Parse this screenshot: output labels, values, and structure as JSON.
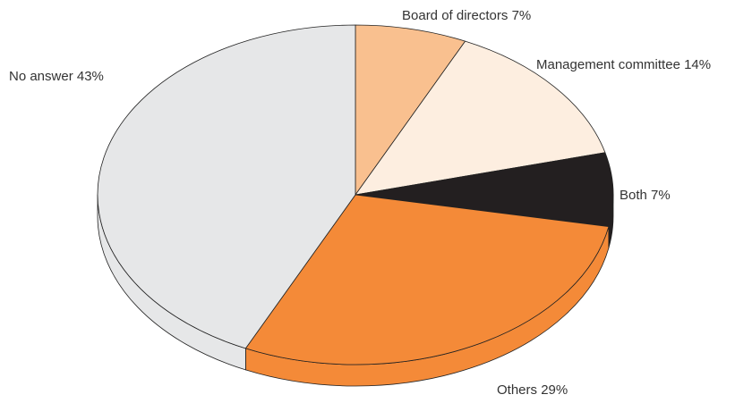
{
  "chart_data": {
    "type": "pie",
    "categories": [
      "Board of directors",
      "Management committee",
      "Both",
      "Others",
      "No answer"
    ],
    "values": [
      7,
      14,
      7,
      29,
      43
    ],
    "value_labels": [
      "7%",
      "14%",
      "7%",
      "29%",
      "43%"
    ],
    "colors": [
      "#f9c08f",
      "#fdeee0",
      "#231f20",
      "#f48a38",
      "#e6e7e8"
    ]
  }
}
